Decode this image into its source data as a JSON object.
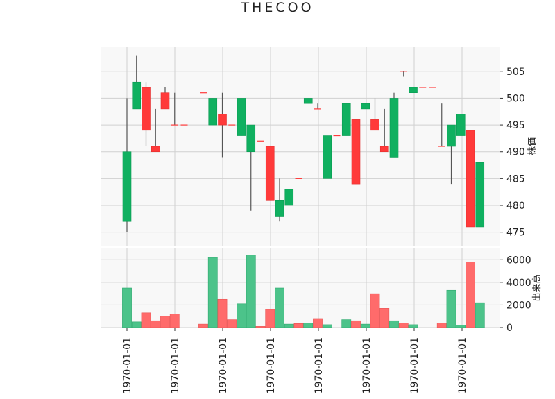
{
  "chart_data": {
    "type": "candlestick",
    "title": "THECOO",
    "ylabel_price": "株価",
    "ylabel_volume": "出来高",
    "x_tick_labels": [
      "1970-01-01",
      "1970-01-01",
      "1970-01-01",
      "1970-01-01",
      "1970-01-01",
      "1970-01-01",
      "1970-01-01",
      "1970-01-01"
    ],
    "price_yticks": [
      475,
      480,
      485,
      490,
      495,
      500,
      505
    ],
    "volume_yticks": [
      0,
      2000,
      4000,
      6000
    ],
    "price_ylim": [
      472.5,
      509.5
    ],
    "volume_ylim": [
      0,
      7000
    ],
    "grid": true,
    "colors": {
      "up": "#10b060",
      "down": "#ff3a3a",
      "up_volume": "#4cc38a",
      "down_volume": "#ff6b6b",
      "wick": "#555555",
      "panel_bg": "#f8f8f8",
      "grid": "#d0d0d0"
    },
    "candles": [
      {
        "open": 477,
        "close": 490,
        "high": 500,
        "low": 475,
        "volume": 3500
      },
      {
        "open": 498,
        "close": 503,
        "high": 508,
        "low": 498,
        "volume": 500
      },
      {
        "open": 502,
        "close": 494,
        "high": 503,
        "low": 491,
        "volume": 1300
      },
      {
        "open": 491,
        "close": 490,
        "high": 498,
        "low": 490,
        "volume": 600
      },
      {
        "open": 501,
        "close": 498,
        "high": 502,
        "low": 498,
        "volume": 1000
      },
      {
        "open": 495,
        "close": 495,
        "high": 501,
        "low": 495,
        "volume": 1200
      },
      {
        "open": 495,
        "close": 495,
        "high": 495,
        "low": 495,
        "volume": 0
      },
      null,
      {
        "open": 501,
        "close": 501,
        "high": 501,
        "low": 501,
        "volume": 300
      },
      {
        "open": 495,
        "close": 500,
        "high": 500,
        "low": 495,
        "volume": 6200
      },
      {
        "open": 497,
        "close": 495,
        "high": 501,
        "low": 489,
        "volume": 2500
      },
      {
        "open": 495,
        "close": 495,
        "high": 495,
        "low": 495,
        "volume": 700
      },
      {
        "open": 493,
        "close": 500,
        "high": 500,
        "low": 493,
        "volume": 2100
      },
      {
        "open": 490,
        "close": 495,
        "high": 495,
        "low": 479,
        "volume": 6400
      },
      {
        "open": 492,
        "close": 492,
        "high": 492,
        "low": 492,
        "volume": 100
      },
      {
        "open": 491,
        "close": 481,
        "high": 491,
        "low": 481,
        "volume": 1600
      },
      {
        "open": 478,
        "close": 481,
        "high": 485,
        "low": 477,
        "volume": 3500
      },
      {
        "open": 480,
        "close": 483,
        "high": 483,
        "low": 480,
        "volume": 300
      },
      {
        "open": 485,
        "close": 485,
        "high": 485,
        "low": 485,
        "volume": 350
      },
      {
        "open": 499,
        "close": 500,
        "high": 500,
        "low": 499,
        "volume": 400
      },
      {
        "open": 498,
        "close": 498,
        "high": 499,
        "low": 498,
        "volume": 800
      },
      {
        "open": 485,
        "close": 493,
        "high": 493,
        "low": 485,
        "volume": 250
      },
      {
        "open": 493,
        "close": 493,
        "high": 493,
        "low": 493,
        "volume": 0
      },
      {
        "open": 493,
        "close": 499,
        "high": 499,
        "low": 493,
        "volume": 700
      },
      {
        "open": 496,
        "close": 484,
        "high": 496,
        "low": 484,
        "volume": 600
      },
      {
        "open": 498,
        "close": 499,
        "high": 499,
        "low": 498,
        "volume": 300
      },
      {
        "open": 496,
        "close": 494,
        "high": 500,
        "low": 494,
        "volume": 3000
      },
      {
        "open": 491,
        "close": 490,
        "high": 498,
        "low": 490,
        "volume": 1700
      },
      {
        "open": 489,
        "close": 500,
        "high": 501,
        "low": 489,
        "volume": 600
      },
      {
        "open": 505,
        "close": 505,
        "high": 505,
        "low": 504,
        "volume": 400
      },
      {
        "open": 501,
        "close": 502,
        "high": 502,
        "low": 501,
        "volume": 250
      },
      {
        "open": 502,
        "close": 502,
        "high": 502,
        "low": 502,
        "volume": 0
      },
      {
        "open": 502,
        "close": 502,
        "high": 502,
        "low": 502,
        "volume": 0
      },
      {
        "open": 491,
        "close": 491,
        "high": 499,
        "low": 491,
        "volume": 400
      },
      {
        "open": 491,
        "close": 495,
        "high": 495,
        "low": 484,
        "volume": 3300
      },
      {
        "open": 493,
        "close": 497,
        "high": 497,
        "low": 493,
        "volume": 200
      },
      {
        "open": 494,
        "close": 476,
        "high": 494,
        "low": 476,
        "volume": 5800
      },
      {
        "open": 476,
        "close": 488,
        "high": 488,
        "low": 476,
        "volume": 2200
      }
    ]
  }
}
